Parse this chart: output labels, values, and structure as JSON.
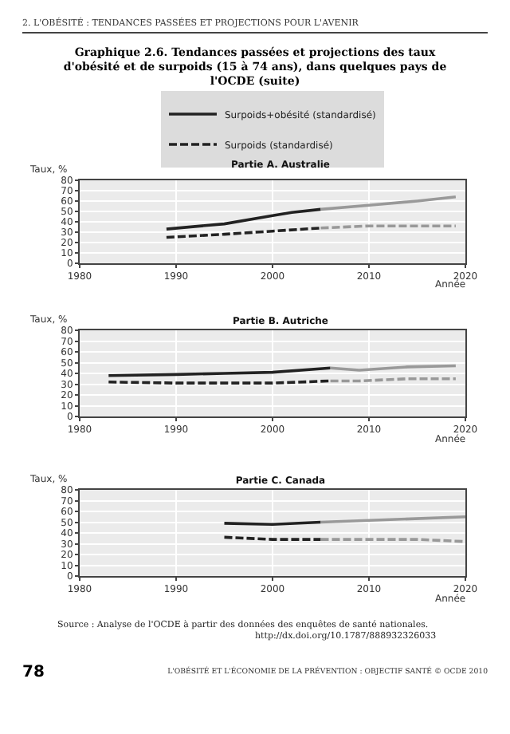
{
  "chart_data": [
    {
      "type": "line",
      "title": "Graphique 2.6. Tendances passées et projections des taux d'obésité et de surpoids (15 à 74 ans), dans quelques pays de l'OCDE (suite)",
      "subtitle": "Partie A. Australie",
      "ylabel": "Taux, %",
      "xlabel": "Année",
      "annotations": [
        "2. L'OBÉSITÉ : TENDANCES PASSÉES ET PROJECTIONS POUR L'AVENIR"
      ],
      "xlim": [
        1980,
        2020
      ],
      "xticks": [
        1980,
        1990,
        2000,
        2010,
        2020
      ],
      "ylim": [
        0,
        80
      ],
      "yticks": [
        0,
        10,
        20,
        30,
        40,
        50,
        60,
        70,
        80
      ],
      "grid": true,
      "legend": "top",
      "marker": "none",
      "series": [
        {
          "name": "Surpoids+obésité (standardisé)",
          "color": "#222222",
          "line_style": "solid",
          "x": [
            1989,
            1995,
            2000,
            2002,
            2005
          ],
          "values": [
            33,
            38,
            46,
            49,
            52
          ]
        },
        {
          "color": "#999999",
          "line_style": "solid",
          "x": [
            2005,
            2010,
            2015,
            2019
          ],
          "values": [
            52,
            56,
            60,
            64
          ]
        },
        {
          "name": "Surpoids (standardisé)",
          "color": "#222222",
          "line_style": "dashed",
          "x": [
            1989,
            1995,
            2000,
            2005
          ],
          "values": [
            25,
            28,
            31,
            34
          ]
        },
        {
          "color": "#999999",
          "line_style": "dashed",
          "x": [
            2005,
            2010,
            2019
          ],
          "values": [
            34,
            36,
            36
          ]
        }
      ]
    },
    {
      "type": "line",
      "subtitle": "Partie B. Autriche",
      "ylabel": "Taux, %",
      "xlabel": "Année",
      "xlim": [
        1980,
        2020
      ],
      "xticks": [
        1980,
        1990,
        2000,
        2010,
        2020
      ],
      "ylim": [
        0,
        80
      ],
      "yticks": [
        0,
        10,
        20,
        30,
        40,
        50,
        60,
        70,
        80
      ],
      "grid": true,
      "marker": "none",
      "series": [
        {
          "color": "#222222",
          "line_style": "solid",
          "x": [
            1983,
            1990,
            1995,
            2000,
            2006
          ],
          "values": [
            38,
            39,
            40,
            41,
            45
          ]
        },
        {
          "color": "#999999",
          "line_style": "solid",
          "x": [
            2006,
            2009,
            2014,
            2019
          ],
          "values": [
            45,
            43,
            46,
            47
          ]
        },
        {
          "color": "#222222",
          "line_style": "dashed",
          "x": [
            1983,
            1990,
            2000,
            2006
          ],
          "values": [
            32,
            31,
            31,
            33
          ]
        },
        {
          "color": "#999999",
          "line_style": "dashed",
          "x": [
            2006,
            2009,
            2014,
            2019
          ],
          "values": [
            33,
            33,
            35,
            35
          ]
        }
      ]
    },
    {
      "type": "line",
      "subtitle": "Partie C. Canada",
      "ylabel": "Taux, %",
      "xlabel": "Année",
      "annotations": [
        "Source : Analyse de l'OCDE à partir des données des enquêtes de santé nationales.",
        "http://dx.doi.org/10.1787/888932326033",
        "78",
        "L'OBÉSITÉ ET L'ÉCONOMIE DE LA PRÉVENTION : OBJECTIF SANTÉ © OCDE 2010"
      ],
      "xlim": [
        1980,
        2020
      ],
      "xticks": [
        1980,
        1990,
        2000,
        2010,
        2020
      ],
      "ylim": [
        0,
        80
      ],
      "yticks": [
        0,
        10,
        20,
        30,
        40,
        50,
        60,
        70,
        80
      ],
      "grid": true,
      "marker": "none",
      "series": [
        {
          "color": "#222222",
          "line_style": "solid",
          "x": [
            1995,
            2000,
            2005
          ],
          "values": [
            49,
            48,
            50
          ]
        },
        {
          "color": "#999999",
          "line_style": "solid",
          "x": [
            2005,
            2020
          ],
          "values": [
            50,
            55
          ]
        },
        {
          "color": "#222222",
          "line_style": "dashed",
          "x": [
            1995,
            2000,
            2005
          ],
          "values": [
            36,
            34,
            34
          ]
        },
        {
          "color": "#999999",
          "line_style": "dashed",
          "x": [
            2005,
            2015,
            2020
          ],
          "values": [
            34,
            34,
            32
          ]
        }
      ]
    }
  ]
}
